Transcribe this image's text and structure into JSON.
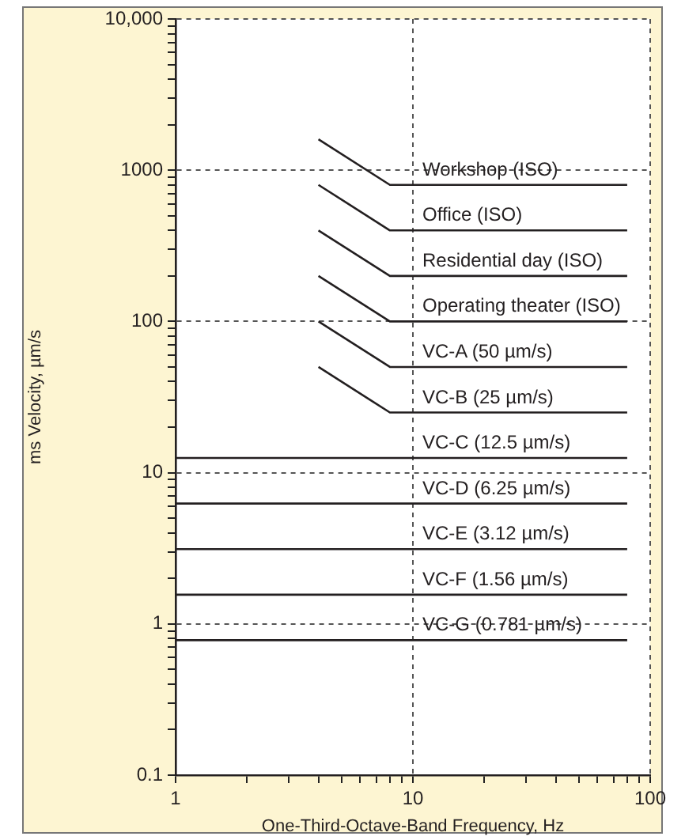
{
  "chart_data": {
    "type": "line",
    "xlabel": "One-Third-Octave-Band Frequency, Hz",
    "ylabel": "ms Velocity, µm/s",
    "log": "xy",
    "grid": true,
    "legend": false,
    "marker": "none",
    "line_style": "solid",
    "xlim": [
      1,
      100
    ],
    "ylim": [
      0.1,
      10000
    ],
    "xticks": [
      1,
      {
        "value": 2,
        "label": null
      },
      {
        "value": 3,
        "label": null
      },
      {
        "value": 4,
        "label": null
      },
      {
        "value": 5,
        "label": null
      },
      {
        "value": 6,
        "label": null
      },
      {
        "value": 7,
        "label": null
      },
      {
        "value": 8,
        "label": null
      },
      {
        "value": 9,
        "label": null
      },
      10,
      {
        "value": 20,
        "label": null
      },
      {
        "value": 30,
        "label": null
      },
      {
        "value": 40,
        "label": null
      },
      {
        "value": 50,
        "label": null
      },
      {
        "value": 60,
        "label": null
      },
      {
        "value": 70,
        "label": null
      },
      {
        "value": 80,
        "label": null
      },
      {
        "value": 90,
        "label": null
      },
      100
    ],
    "yticks": [
      0.1,
      {
        "value": 0.2,
        "label": null
      },
      {
        "value": 0.3,
        "label": null
      },
      {
        "value": 0.4,
        "label": null
      },
      {
        "value": 0.5,
        "label": null
      },
      {
        "value": 0.6,
        "label": null
      },
      {
        "value": 0.7,
        "label": null
      },
      {
        "value": 0.8,
        "label": null
      },
      {
        "value": 0.9,
        "label": null
      },
      1,
      {
        "value": 2,
        "label": null
      },
      {
        "value": 3,
        "label": null
      },
      {
        "value": 4,
        "label": null
      },
      {
        "value": 5,
        "label": null
      },
      {
        "value": 6,
        "label": null
      },
      {
        "value": 7,
        "label": null
      },
      {
        "value": 8,
        "label": null
      },
      {
        "value": 9,
        "label": null
      },
      10,
      {
        "value": 20,
        "label": null
      },
      {
        "value": 30,
        "label": null
      },
      {
        "value": 40,
        "label": null
      },
      {
        "value": 50,
        "label": null
      },
      {
        "value": 60,
        "label": null
      },
      {
        "value": 70,
        "label": null
      },
      {
        "value": 80,
        "label": null
      },
      {
        "value": 90,
        "label": null
      },
      100,
      {
        "value": 200,
        "label": null
      },
      {
        "value": 300,
        "label": null
      },
      {
        "value": 400,
        "label": null
      },
      {
        "value": 500,
        "label": null
      },
      {
        "value": 600,
        "label": null
      },
      {
        "value": 700,
        "label": null
      },
      {
        "value": 800,
        "label": null
      },
      {
        "value": 900,
        "label": null
      },
      1000,
      {
        "value": 2000,
        "label": null
      },
      {
        "value": 3000,
        "label": null
      },
      {
        "value": 4000,
        "label": null
      },
      {
        "value": 5000,
        "label": null
      },
      {
        "value": 6000,
        "label": null
      },
      {
        "value": 7000,
        "label": null
      },
      {
        "value": 8000,
        "label": null
      },
      {
        "value": 9000,
        "label": null
      },
      {
        "value": 10000,
        "label": "10,000"
      }
    ],
    "series": [
      {
        "name": "Workshop (ISO)",
        "color": "#231f20",
        "x": [
          4,
          8,
          80
        ],
        "values": [
          1600,
          800,
          800
        ]
      },
      {
        "name": "Office (ISO)",
        "color": "#231f20",
        "x": [
          4,
          8,
          80
        ],
        "values": [
          800,
          400,
          400
        ]
      },
      {
        "name": "Residential day (ISO)",
        "color": "#231f20",
        "x": [
          4,
          8,
          80
        ],
        "values": [
          400,
          200,
          200
        ]
      },
      {
        "name": "Operating theater (ISO)",
        "color": "#231f20",
        "x": [
          4,
          8,
          80
        ],
        "values": [
          200,
          100,
          100
        ]
      },
      {
        "name": "VC-A (50 µm/s)",
        "color": "#231f20",
        "x": [
          4,
          8,
          80
        ],
        "values": [
          100,
          50,
          50
        ]
      },
      {
        "name": "VC-B (25 µm/s)",
        "color": "#231f20",
        "x": [
          4,
          8,
          80
        ],
        "values": [
          50,
          25,
          25
        ]
      },
      {
        "name": "VC-C (12.5 µm/s)",
        "color": "#231f20",
        "x": [
          1,
          80
        ],
        "values": [
          12.5,
          12.5
        ]
      },
      {
        "name": "VC-D (6.25 µm/s)",
        "color": "#231f20",
        "x": [
          1,
          80
        ],
        "values": [
          6.25,
          6.25
        ]
      },
      {
        "name": "VC-E (3.12 µm/s)",
        "color": "#231f20",
        "x": [
          1,
          80
        ],
        "values": [
          3.12,
          3.12
        ]
      },
      {
        "name": "VC-F (1.56 µm/s)",
        "color": "#231f20",
        "x": [
          1,
          80
        ],
        "values": [
          1.56,
          1.56
        ]
      },
      {
        "name": "VC-G (0.781 µm/s)",
        "color": "#231f20",
        "x": [
          1,
          80
        ],
        "values": [
          0.781,
          0.781
        ]
      }
    ]
  }
}
